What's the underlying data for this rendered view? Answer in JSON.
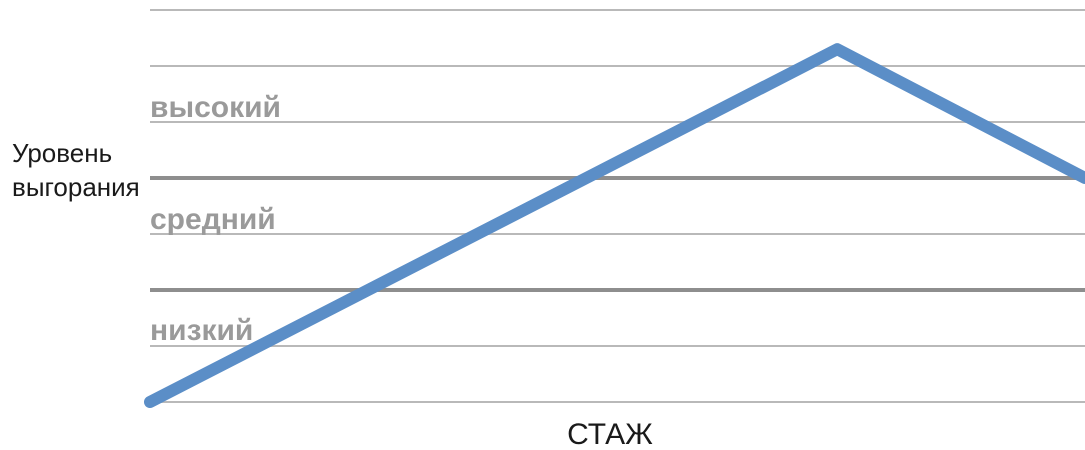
{
  "chart_data": {
    "type": "line",
    "ylabel": [
      "Уровень",
      "выгорания"
    ],
    "xlabel": "СТАЖ",
    "y_zones": [
      {
        "label": "высокий",
        "range": [
          4,
          7
        ]
      },
      {
        "label": "средний",
        "range": [
          2,
          4
        ]
      },
      {
        "label": "низкий",
        "range": [
          0,
          2
        ]
      }
    ],
    "ylim": [
      0,
      7
    ],
    "xlim": [
      0,
      1
    ],
    "grid": true,
    "grid_values": [
      0,
      1,
      2,
      3,
      4,
      5,
      6,
      7
    ],
    "zone_boundaries": [
      2,
      4
    ],
    "series": [
      {
        "color": "#5b8ec7",
        "points": [
          [
            0.0,
            0.0
          ],
          [
            0.735,
            6.3
          ],
          [
            1.0,
            4.0
          ]
        ]
      }
    ]
  }
}
